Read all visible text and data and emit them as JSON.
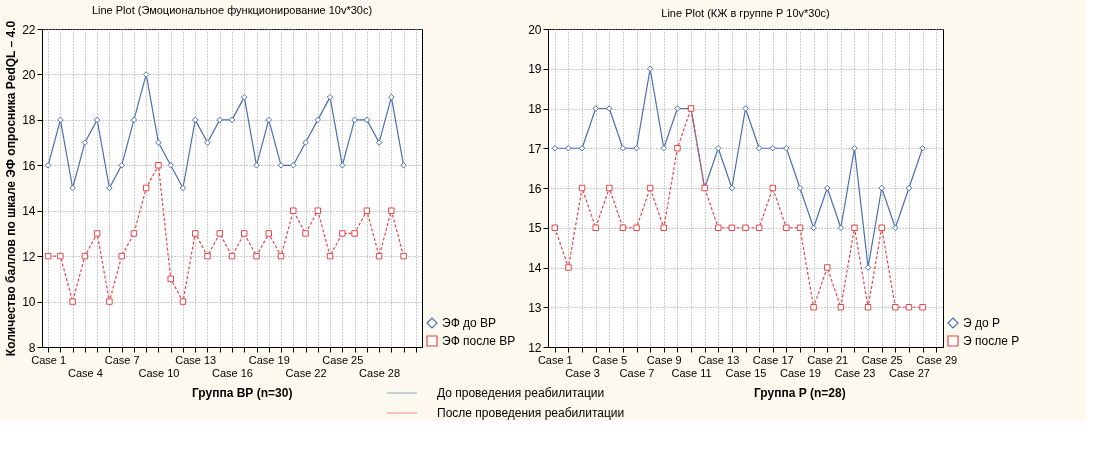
{
  "chart_data": [
    {
      "type": "line",
      "title": "Line Plot (Эмоциональное функционирование 10v*30c)",
      "ylabel": "Количество баллов по шкале ЭФ опросника PedQL – 4.0",
      "categories": [
        "Case 1",
        null,
        null,
        "Case 4",
        null,
        null,
        "Case 7",
        null,
        null,
        "Case 10",
        null,
        null,
        "Case 13",
        null,
        null,
        "Case 16",
        null,
        null,
        "Case 19",
        null,
        null,
        "Case 22",
        null,
        null,
        "Case 25",
        null,
        null,
        "Case 28",
        null,
        null,
        null
      ],
      "series": [
        {
          "name": "ЭФ до ВР",
          "color": "#4a6fb5",
          "marker": "diamond",
          "line_style": "solid",
          "values": [
            16,
            18,
            15,
            17,
            18,
            15,
            16,
            18,
            20,
            17,
            16,
            15,
            18,
            17,
            18,
            18,
            19,
            16,
            18,
            16,
            16,
            17,
            18,
            19,
            16,
            18,
            18,
            17,
            19,
            16,
            null
          ]
        },
        {
          "name": "ЭФ после ВР",
          "color": "#e8464a",
          "marker": "square",
          "line_style": "dashed",
          "values": [
            12,
            12,
            10,
            12,
            13,
            10,
            12,
            13,
            15,
            16,
            11,
            10,
            13,
            12,
            13,
            12,
            13,
            12,
            13,
            12,
            14,
            13,
            14,
            12,
            13,
            13,
            14,
            12,
            14,
            12,
            null
          ]
        }
      ],
      "ylim": [
        8,
        22
      ],
      "yticks": [
        8,
        10,
        12,
        14,
        16,
        18,
        20,
        22
      ],
      "grid": true,
      "legend": "bottom right",
      "annotations": [
        "Группа ВР (n=30)",
        "До проведения реабилитации",
        "После проведения реабилитации"
      ]
    },
    {
      "type": "line",
      "title": "Line Plot (КЖ в группе Р 10v*30c)",
      "categories": [
        "Case 1",
        null,
        "Case 3",
        null,
        "Case 5",
        null,
        "Case 7",
        null,
        "Case 9",
        null,
        "Case 11",
        null,
        "Case 13",
        null,
        "Case 15",
        null,
        "Case 17",
        null,
        "Case 19",
        null,
        "Case 21",
        null,
        "Case 23",
        null,
        "Case 25",
        null,
        "Case 27",
        null,
        "Case 29"
      ],
      "series": [
        {
          "name": "Э до Р",
          "color": "#4a6fb5",
          "marker": "diamond",
          "line_style": "solid",
          "values": [
            17,
            17,
            17,
            18,
            18,
            17,
            17,
            19,
            17,
            18,
            18,
            16,
            17,
            16,
            18,
            17,
            17,
            17,
            16,
            15,
            16,
            15,
            17,
            14,
            16,
            15,
            16,
            17,
            null
          ]
        },
        {
          "name": "Э после Р",
          "color": "#e8464a",
          "marker": "square",
          "line_style": "dashed",
          "values": [
            15,
            14,
            16,
            15,
            16,
            15,
            15,
            16,
            15,
            17,
            18,
            16,
            15,
            15,
            15,
            15,
            16,
            15,
            15,
            13,
            14,
            13,
            15,
            13,
            15,
            13,
            13,
            13,
            null
          ]
        }
      ],
      "ylim": [
        12,
        20
      ],
      "yticks": [
        12,
        13,
        14,
        15,
        16,
        17,
        18,
        19,
        20
      ],
      "grid": true,
      "legend": "bottom right",
      "annotations": [
        "Группа Р (n=28)"
      ]
    }
  ]
}
